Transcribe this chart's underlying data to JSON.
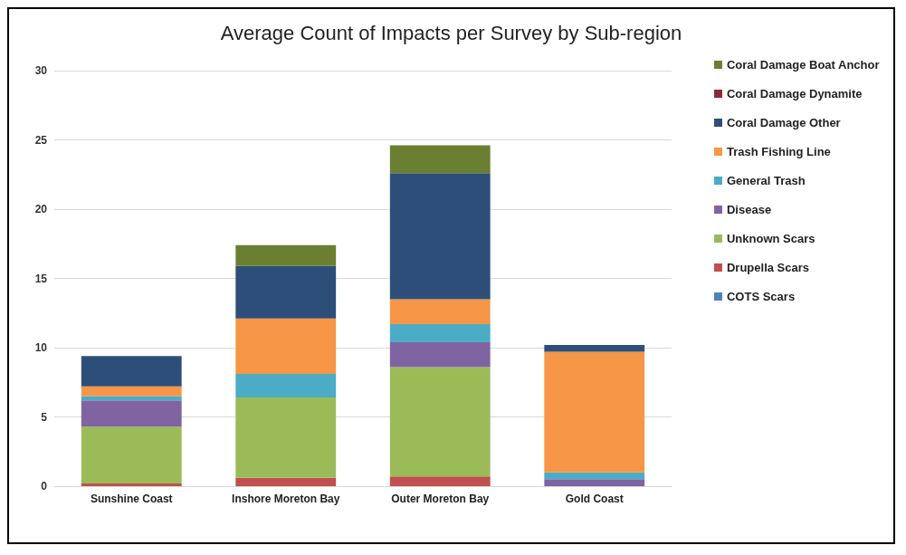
{
  "chart_data": {
    "type": "bar",
    "stacked": true,
    "title": "Average Count of Impacts per Survey by Sub-region",
    "categories": [
      "Sunshine Coast",
      "Inshore Moreton Bay",
      "Outer Moreton Bay",
      "Gold Coast"
    ],
    "series": [
      {
        "name": "COTS Scars",
        "color": "#4f81bd",
        "values": [
          0,
          0,
          0,
          0
        ]
      },
      {
        "name": "Drupella Scars",
        "color": "#c0504d",
        "values": [
          0.2,
          0.6,
          0.7,
          0
        ]
      },
      {
        "name": "Unknown Scars",
        "color": "#9bbb59",
        "values": [
          4.1,
          5.8,
          7.9,
          0
        ]
      },
      {
        "name": "Disease",
        "color": "#8064a2",
        "values": [
          1.9,
          0,
          1.8,
          0.5
        ]
      },
      {
        "name": "General Trash",
        "color": "#4bacc6",
        "values": [
          0.3,
          1.7,
          1.3,
          0.5
        ]
      },
      {
        "name": "Trash Fishing Line",
        "color": "#f79646",
        "values": [
          0.7,
          4.0,
          1.8,
          8.7
        ]
      },
      {
        "name": "Coral Damage Other",
        "color": "#2e4e7a",
        "values": [
          2.2,
          3.8,
          9.1,
          0.5
        ]
      },
      {
        "name": "Coral Damage Dynamite",
        "color": "#8b2a3a",
        "values": [
          0,
          0,
          0,
          0
        ]
      },
      {
        "name": "Coral Damage Boat Anchor",
        "color": "#6b7f32",
        "values": [
          0,
          1.5,
          2.0,
          0
        ]
      }
    ],
    "ylim": [
      0,
      30
    ],
    "yticks": [
      0,
      5,
      10,
      15,
      20,
      25,
      30
    ],
    "grid": "y",
    "legend": "right"
  }
}
